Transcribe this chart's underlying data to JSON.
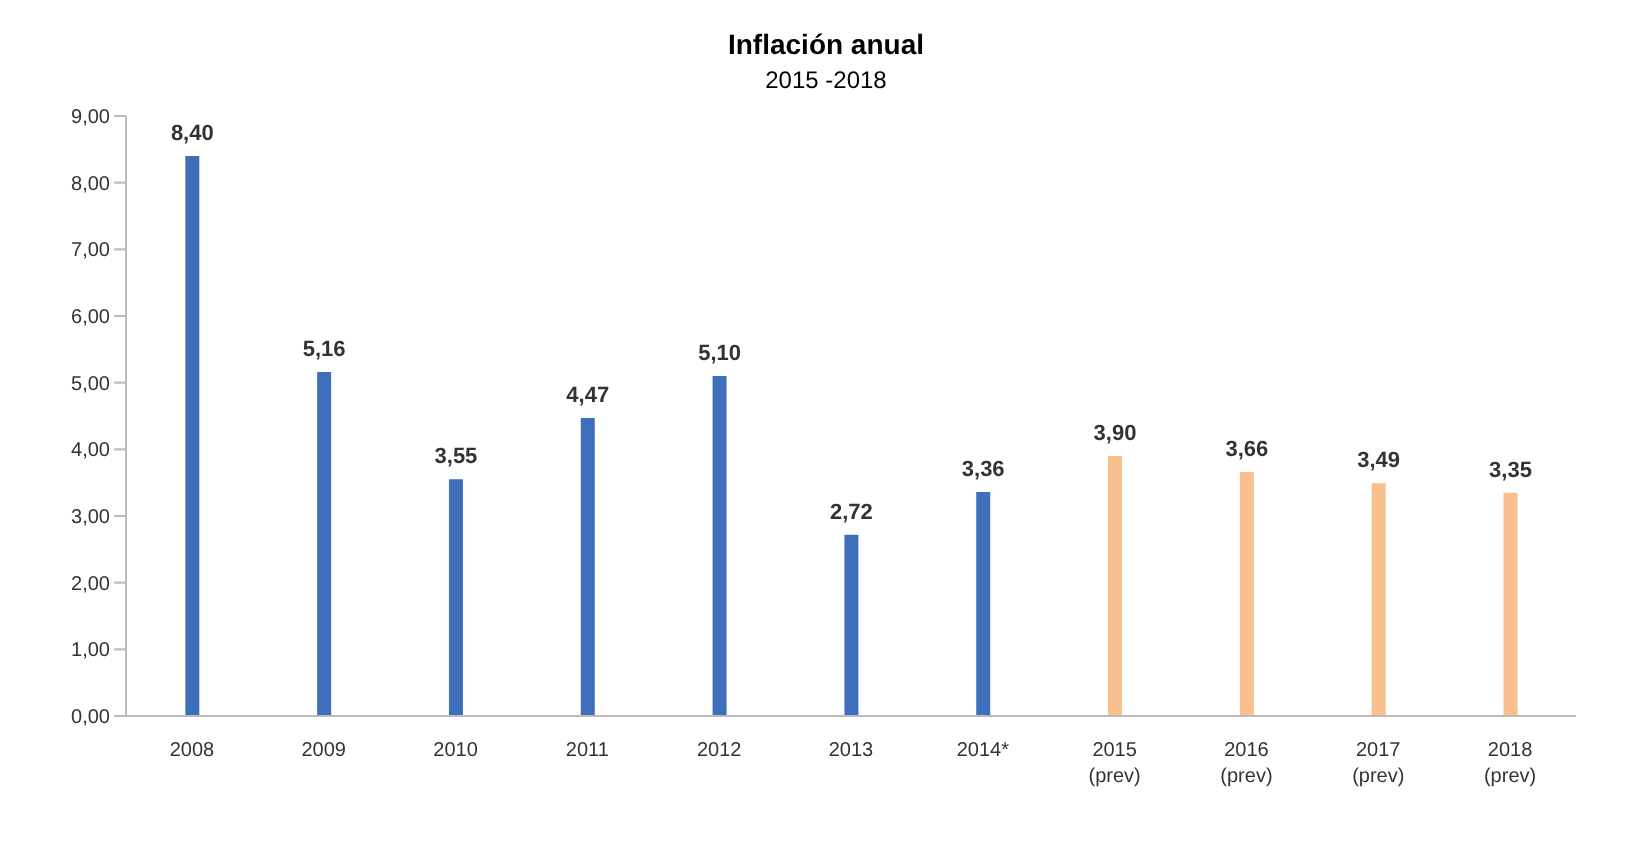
{
  "chart_data": {
    "type": "bar",
    "title": "Inflación anual",
    "subtitle": "2015 -2018",
    "categories": [
      "2008",
      "2009",
      "2010",
      "2011",
      "2012",
      "2013",
      "2014*",
      "2015\n(prev)",
      "2016\n(prev)",
      "2017\n(prev)",
      "2018\n(prev)"
    ],
    "values": [
      8.4,
      5.16,
      3.55,
      4.47,
      5.1,
      2.72,
      3.36,
      3.9,
      3.66,
      3.49,
      3.35
    ],
    "value_labels": [
      "8,40",
      "5,16",
      "3,55",
      "4,47",
      "5,10",
      "2,72",
      "3,36",
      "3,90",
      "3,66",
      "3,49",
      "3,35"
    ],
    "colors": [
      "#3f6fba",
      "#3f6fba",
      "#3f6fba",
      "#3f6fba",
      "#3f6fba",
      "#3f6fba",
      "#3f6fba",
      "#f9bf8c",
      "#f9bf8c",
      "#f9bf8c",
      "#f9bf8c"
    ],
    "ylim": [
      0,
      9
    ],
    "yticks": [
      {
        "value": 0,
        "label": "0,00"
      },
      {
        "value": 1,
        "label": "1,00"
      },
      {
        "value": 2,
        "label": "2,00"
      },
      {
        "value": 3,
        "label": "3,00"
      },
      {
        "value": 4,
        "label": "4,00"
      },
      {
        "value": 5,
        "label": "5,00"
      },
      {
        "value": 6,
        "label": "6,00"
      },
      {
        "value": 7,
        "label": "7,00"
      },
      {
        "value": 8,
        "label": "8,00"
      },
      {
        "value": 9,
        "label": "9,00"
      }
    ],
    "grid": false,
    "legend": false
  }
}
